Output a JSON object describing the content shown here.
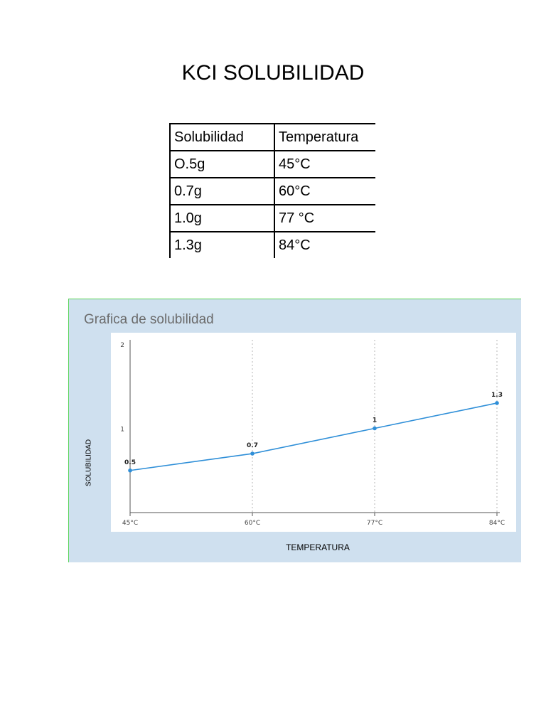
{
  "document": {
    "title": "KCI SOLUBILIDAD"
  },
  "table": {
    "headers": [
      "Solubilidad",
      "Temperatura"
    ],
    "rows": [
      [
        "O.5g",
        "45°C"
      ],
      [
        "0.7g",
        "60°C"
      ],
      [
        "1.0g",
        "77 °C"
      ],
      [
        "1.3g",
        "84°C"
      ]
    ]
  },
  "chart_data": {
    "type": "line",
    "title": "Grafica de solubilidad",
    "xlabel": "TEMPERATURA",
    "ylabel": "SOLUBILIDAD",
    "categories": [
      "45°C",
      "60°C",
      "77°C",
      "84°C"
    ],
    "values": [
      0.5,
      0.7,
      1,
      1.3
    ],
    "data_labels": [
      "0.5",
      "0.7",
      "1",
      "1.3"
    ],
    "ylim": [
      0,
      2
    ],
    "yticks": [
      1,
      2
    ],
    "grid": "vertical dotted",
    "colors": {
      "line": "#2f8fd8",
      "panel": "#cfe0ef"
    }
  }
}
